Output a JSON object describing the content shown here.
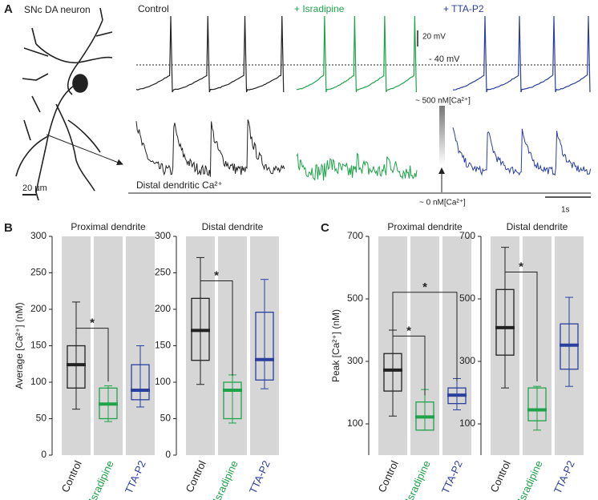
{
  "panel_a": {
    "label": "A",
    "title": "SNc DA neuron",
    "control": "Control",
    "isradipine": "+ Isradipine",
    "tta": "+ TTA-P2",
    "scale_v": "20 mV",
    "threshold": "- 40 mV",
    "ca_high": "~ 500 nM[Ca²⁺]",
    "ca_low": "~ 0 nM[Ca²⁺]",
    "distal": "Distal dendritic Ca²⁺",
    "scale_um": "20 µm",
    "scale_t": "1s"
  },
  "chart_data": [
    {
      "type": "box",
      "panel": "B",
      "title": "Proximal dendrite",
      "ylabel": "Average [Ca²⁺] (nM)",
      "categories": [
        "Control",
        "Isradipine",
        "TTA-P2"
      ],
      "colors": [
        "#222222",
        "#1fa34a",
        "#2b3f9e"
      ],
      "low": [
        63,
        46,
        66
      ],
      "q1": [
        92,
        50,
        76
      ],
      "median": [
        124,
        70,
        89
      ],
      "q3": [
        150,
        92,
        124
      ],
      "high": [
        210,
        95,
        150
      ],
      "ylim": [
        0,
        300
      ],
      "yticks": [
        0,
        50,
        100,
        150,
        200,
        250,
        300
      ],
      "significance": [
        {
          "pair": [
            0,
            1
          ],
          "label": "*"
        }
      ]
    },
    {
      "type": "box",
      "title": "Distal dendrite",
      "categories": [
        "Control",
        "Isradipine",
        "TTA-P2"
      ],
      "colors": [
        "#222222",
        "#1fa34a",
        "#2b3f9e"
      ],
      "low": [
        97,
        44,
        91
      ],
      "q1": [
        130,
        50,
        103
      ],
      "median": [
        171,
        89,
        131
      ],
      "q3": [
        215,
        100,
        196
      ],
      "high": [
        271,
        110,
        241
      ],
      "ylim": [
        0,
        300
      ],
      "yticks": [
        0,
        50,
        100,
        150,
        200,
        250,
        300
      ],
      "significance": [
        {
          "pair": [
            0,
            1
          ],
          "label": "*"
        }
      ]
    },
    {
      "type": "box",
      "panel": "C",
      "title": "Proximal dendrite",
      "ylabel": "Peak [Ca²⁺] (nM)",
      "categories": [
        "Control",
        "Isradipine",
        "TTA-P2"
      ],
      "colors": [
        "#222222",
        "#1fa34a",
        "#2b3f9e"
      ],
      "low": [
        125,
        80,
        145
      ],
      "q1": [
        205,
        80,
        165
      ],
      "median": [
        272,
        122,
        192
      ],
      "q3": [
        325,
        170,
        215
      ],
      "high": [
        400,
        210,
        245
      ],
      "ylim": [
        0,
        700
      ],
      "yticks": [
        100,
        300,
        500,
        700
      ],
      "significance": [
        {
          "pair": [
            0,
            1
          ],
          "label": "*"
        },
        {
          "pair": [
            0,
            2
          ],
          "label": "*"
        }
      ]
    },
    {
      "type": "box",
      "title": "Distal dendrite",
      "categories": [
        "Control",
        "Isradipine",
        "TTA-P2"
      ],
      "colors": [
        "#222222",
        "#1fa34a",
        "#2b3f9e"
      ],
      "low": [
        215,
        80,
        220
      ],
      "q1": [
        320,
        110,
        275
      ],
      "median": [
        408,
        145,
        352
      ],
      "q3": [
        530,
        215,
        420
      ],
      "high": [
        665,
        220,
        505
      ],
      "ylim": [
        0,
        700
      ],
      "yticks": [
        100,
        300,
        500,
        700
      ],
      "significance": [
        {
          "pair": [
            0,
            1
          ],
          "label": "*"
        }
      ]
    }
  ]
}
